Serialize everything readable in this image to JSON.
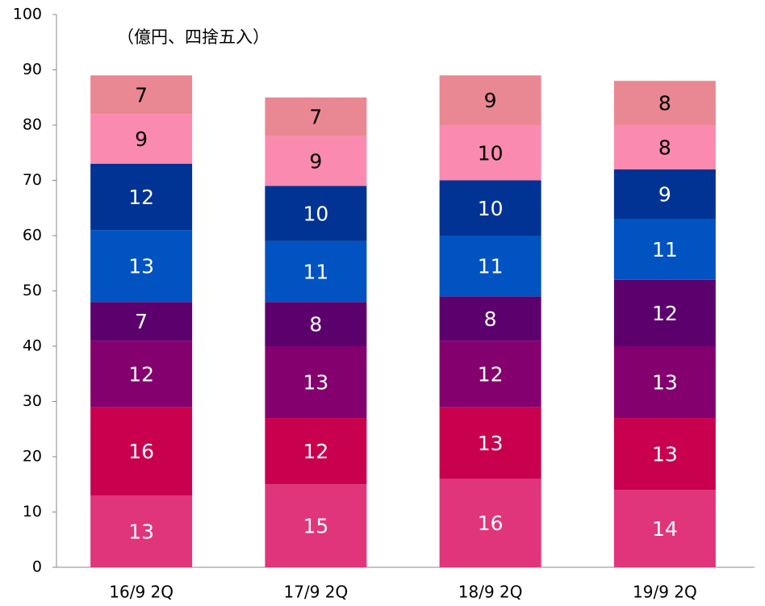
{
  "chart_data": {
    "type": "stacked_bar",
    "annotation": "（億円、四捨五入）",
    "categories": [
      "16/9 2Q",
      "17/9 2Q",
      "18/9 2Q",
      "19/9 2Q"
    ],
    "series": [
      {
        "color": "#e0357a",
        "label_color": "#ffffff",
        "values": [
          13,
          15,
          16,
          14
        ]
      },
      {
        "color": "#c8004d",
        "label_color": "#ffffff",
        "values": [
          16,
          12,
          13,
          13
        ]
      },
      {
        "color": "#84006e",
        "label_color": "#ffffff",
        "values": [
          12,
          13,
          12,
          13
        ]
      },
      {
        "color": "#5c006e",
        "label_color": "#ffffff",
        "values": [
          7,
          8,
          8,
          12
        ]
      },
      {
        "color": "#0053c1",
        "label_color": "#ffffff",
        "values": [
          13,
          11,
          11,
          11
        ]
      },
      {
        "color": "#003393",
        "label_color": "#ffffff",
        "values": [
          12,
          10,
          10,
          9
        ]
      },
      {
        "color": "#fb8ab0",
        "label_color": "#000000",
        "values": [
          9,
          9,
          10,
          8
        ]
      },
      {
        "color": "#e98893",
        "label_color": "#000000",
        "values": [
          7,
          7,
          9,
          8
        ]
      }
    ],
    "ylim": [
      0,
      100
    ],
    "yticks": [
      0,
      10,
      20,
      30,
      40,
      50,
      60,
      70,
      80,
      90,
      100
    ]
  }
}
